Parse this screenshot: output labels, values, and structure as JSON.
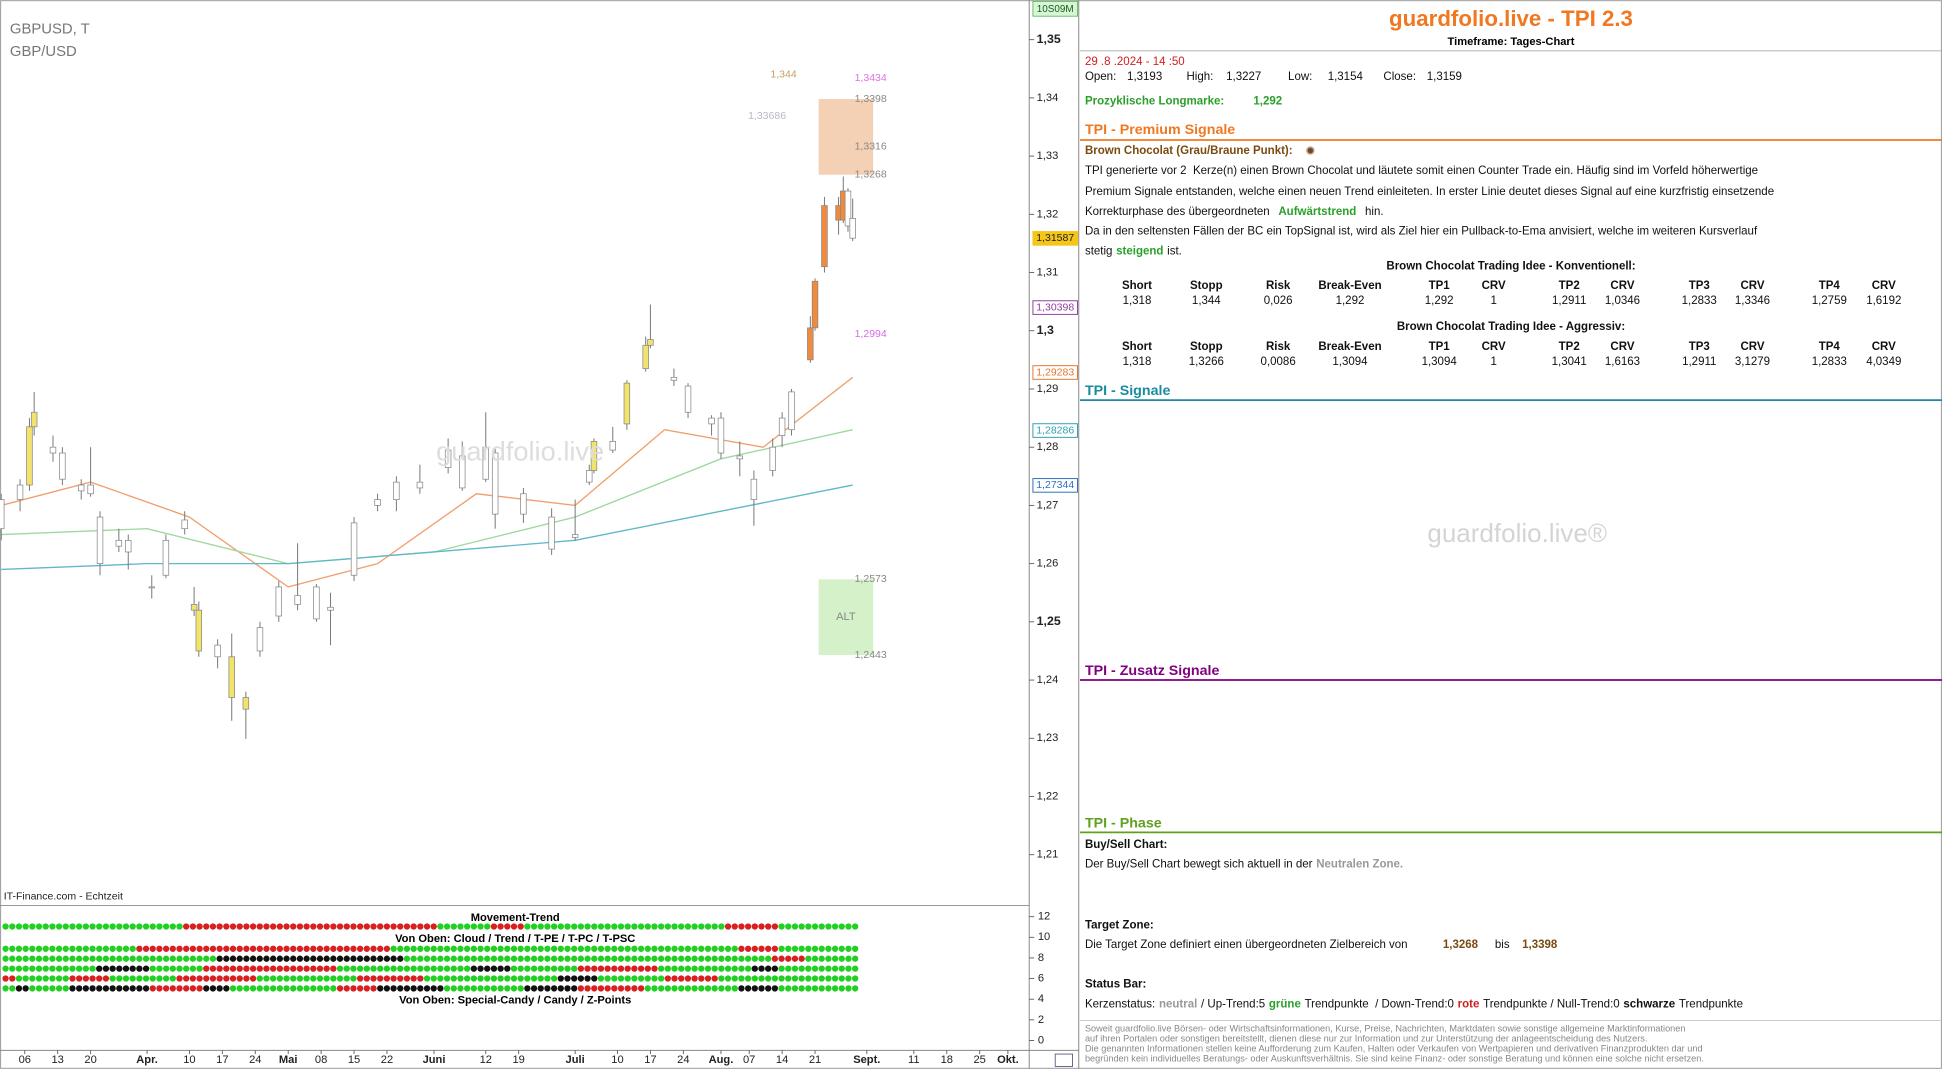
{
  "chart_data": {
    "type": "candlestick",
    "title": "GBPUSD, T",
    "subtitle": "GBP/USD",
    "source": "IT-Finance.com - Echtzeit",
    "timer": "10S09M",
    "watermark": "guardfolio.live",
    "x": [
      "2024-03-01",
      "2024-03-05",
      "2024-03-07",
      "2024-03-08",
      "2024-03-12",
      "2024-03-14",
      "2024-03-18",
      "2024-03-20",
      "2024-03-22",
      "2024-03-26",
      "2024-03-28",
      "2024-04-02",
      "2024-04-05",
      "2024-04-09",
      "2024-04-11",
      "2024-04-12",
      "2024-04-16",
      "2024-04-19",
      "2024-04-22",
      "2024-04-25",
      "2024-04-29",
      "2024-05-03",
      "2024-05-07",
      "2024-05-10",
      "2024-05-15",
      "2024-05-20",
      "2024-05-24",
      "2024-05-29",
      "2024-06-04",
      "2024-06-07",
      "2024-06-12",
      "2024-06-14",
      "2024-06-20",
      "2024-06-26",
      "2024-07-01",
      "2024-07-04",
      "2024-07-05",
      "2024-07-09",
      "2024-07-12",
      "2024-07-16",
      "2024-07-17",
      "2024-07-22",
      "2024-07-25",
      "2024-07-30",
      "2024-08-01",
      "2024-08-05",
      "2024-08-08",
      "2024-08-12",
      "2024-08-14",
      "2024-08-16",
      "2024-08-20",
      "2024-08-21",
      "2024-08-23",
      "2024-08-26",
      "2024-08-27",
      "2024-08-28",
      "2024-08-29"
    ],
    "open": [
      1.266,
      1.271,
      1.2735,
      1.2835,
      1.28,
      1.279,
      1.2735,
      1.272,
      1.268,
      1.264,
      1.264,
      1.256,
      1.258,
      1.266,
      1.253,
      1.252,
      1.246,
      1.244,
      1.237,
      1.245,
      1.251,
      1.253,
      1.256,
      1.252,
      1.258,
      1.27,
      1.271,
      1.274,
      1.2795,
      1.2785,
      1.2745,
      1.279,
      1.272,
      1.268,
      1.2645,
      1.274,
      1.276,
      1.281,
      1.284,
      1.2935,
      1.2975,
      1.2915,
      1.2905,
      1.285,
      1.285,
      1.2785,
      1.271,
      1.276,
      1.282,
      1.283,
      1.295,
      1.3005,
      1.311,
      1.3215,
      1.319,
      1.324,
      1.3193
    ],
    "high": [
      1.272,
      1.2745,
      1.285,
      1.2895,
      1.282,
      1.28,
      1.2745,
      1.28,
      1.269,
      1.266,
      1.265,
      1.258,
      1.265,
      1.269,
      1.256,
      1.2535,
      1.247,
      1.248,
      1.238,
      1.25,
      1.257,
      1.2635,
      1.2565,
      1.255,
      1.268,
      1.272,
      1.275,
      1.277,
      1.2815,
      1.281,
      1.286,
      1.28,
      1.273,
      1.2695,
      1.271,
      1.277,
      1.2815,
      1.2835,
      1.2915,
      1.299,
      1.3045,
      1.2935,
      1.291,
      1.2855,
      1.286,
      1.281,
      1.276,
      1.2815,
      1.286,
      1.29,
      1.3025,
      1.309,
      1.323,
      1.323,
      1.3265,
      1.3245,
      1.3227
    ],
    "low": [
      1.264,
      1.269,
      1.2725,
      1.282,
      1.2775,
      1.2735,
      1.271,
      1.2715,
      1.258,
      1.262,
      1.259,
      1.254,
      1.2575,
      1.265,
      1.251,
      1.244,
      1.242,
      1.233,
      1.2299,
      1.244,
      1.25,
      1.252,
      1.25,
      1.246,
      1.257,
      1.269,
      1.269,
      1.272,
      1.2755,
      1.2725,
      1.274,
      1.266,
      1.267,
      1.2615,
      1.264,
      1.2735,
      1.2755,
      1.279,
      1.283,
      1.293,
      1.297,
      1.2905,
      1.285,
      1.282,
      1.278,
      1.275,
      1.2665,
      1.275,
      1.28,
      1.282,
      1.2945,
      1.3,
      1.31,
      1.3165,
      1.3185,
      1.317,
      1.3154
    ],
    "close": [
      1.271,
      1.2735,
      1.2835,
      1.286,
      1.279,
      1.2745,
      1.2725,
      1.2735,
      1.26,
      1.263,
      1.262,
      1.256,
      1.264,
      1.2675,
      1.252,
      1.245,
      1.244,
      1.237,
      1.235,
      1.249,
      1.256,
      1.2545,
      1.2505,
      1.2525,
      1.267,
      1.271,
      1.274,
      1.273,
      1.2765,
      1.273,
      1.28,
      1.2685,
      1.2685,
      1.2625,
      1.265,
      1.276,
      1.281,
      1.2795,
      1.291,
      1.2975,
      1.2985,
      1.292,
      1.286,
      1.284,
      1.279,
      1.278,
      1.2745,
      1.28,
      1.285,
      1.2895,
      1.3005,
      1.3085,
      1.3215,
      1.319,
      1.324,
      1.318,
      1.3159
    ],
    "candle_colors": [
      "#ffffff",
      "#ffffff",
      "#f2e46b",
      "#f2e46b",
      "#ffffff",
      "#ffffff",
      "#ffffff",
      "#ffffff",
      "#ffffff",
      "#ffffff",
      "#ffffff",
      "#ffffff",
      "#ffffff",
      "#ffffff",
      "#f2e46b",
      "#f2e46b",
      "#ffffff",
      "#f2e46b",
      "#f2e46b",
      "#ffffff",
      "#ffffff",
      "#ffffff",
      "#ffffff",
      "#ffffff",
      "#ffffff",
      "#ffffff",
      "#ffffff",
      "#ffffff",
      "#ffffff",
      "#ffffff",
      "#ffffff",
      "#ffffff",
      "#ffffff",
      "#ffffff",
      "#ffffff",
      "#ffffff",
      "#f2e46b",
      "#ffffff",
      "#f2e46b",
      "#f2e46b",
      "#f2e46b",
      "#ffffff",
      "#ffffff",
      "#ffffff",
      "#ffffff",
      "#ffffff",
      "#ffffff",
      "#ffffff",
      "#ffffff",
      "#ffffff",
      "#f08a3c",
      "#f08a3c",
      "#f08a3c",
      "#f08a3c",
      "#f08a3c",
      "#ffffff",
      "#ffffff"
    ],
    "xlim": [
      "2024-03-01",
      "2024-10-05"
    ],
    "xticks": [
      {
        "value": "2024-03-06",
        "label": "06"
      },
      {
        "value": "2024-03-13",
        "label": "13"
      },
      {
        "value": "2024-03-20",
        "label": "20"
      },
      {
        "value": "2024-04-01",
        "label": "Apr."
      },
      {
        "value": "2024-04-10",
        "label": "10"
      },
      {
        "value": "2024-04-17",
        "label": "17"
      },
      {
        "value": "2024-04-24",
        "label": "24"
      },
      {
        "value": "2024-05-01",
        "label": "Mai"
      },
      {
        "value": "2024-05-08",
        "label": "08"
      },
      {
        "value": "2024-05-15",
        "label": "15"
      },
      {
        "value": "2024-05-22",
        "label": "22"
      },
      {
        "value": "2024-06-01",
        "label": "Juni"
      },
      {
        "value": "2024-06-12",
        "label": "12"
      },
      {
        "value": "2024-06-19",
        "label": "19"
      },
      {
        "value": "2024-07-01",
        "label": "Juli"
      },
      {
        "value": "2024-07-10",
        "label": "10"
      },
      {
        "value": "2024-07-17",
        "label": "17"
      },
      {
        "value": "2024-07-24",
        "label": "24"
      },
      {
        "value": "2024-08-01",
        "label": "Aug."
      },
      {
        "value": "2024-08-07",
        "label": "07"
      },
      {
        "value": "2024-08-14",
        "label": "14"
      },
      {
        "value": "2024-08-21",
        "label": "21"
      },
      {
        "value": "2024-09-01",
        "label": "Sept."
      },
      {
        "value": "2024-09-11",
        "label": "11"
      },
      {
        "value": "2024-09-18",
        "label": "18"
      },
      {
        "value": "2024-09-25",
        "label": "25"
      },
      {
        "value": "2024-10-01",
        "label": "Okt."
      }
    ],
    "ylim": [
      1.2015,
      1.3568
    ],
    "yticks": [
      {
        "value": 1.35,
        "label": "1,35",
        "bold": true
      },
      {
        "value": 1.34,
        "label": "1,34"
      },
      {
        "value": 1.33,
        "label": "1,33"
      },
      {
        "value": 1.32,
        "label": "1,32"
      },
      {
        "value": 1.31,
        "label": "1,31"
      },
      {
        "value": 1.3,
        "label": "1,3",
        "bold": true
      },
      {
        "value": 1.29,
        "label": "1,29"
      },
      {
        "value": 1.28,
        "label": "1,28"
      },
      {
        "value": 1.27,
        "label": "1,27"
      },
      {
        "value": 1.26,
        "label": "1,26"
      },
      {
        "value": 1.25,
        "label": "1,25",
        "bold": true
      },
      {
        "value": 1.24,
        "label": "1,24"
      },
      {
        "value": 1.23,
        "label": "1,23"
      },
      {
        "value": 1.22,
        "label": "1,22"
      },
      {
        "value": 1.21,
        "label": "1,21"
      }
    ],
    "grid": false,
    "lines": [
      {
        "color": "#f0a070",
        "x": [
          "2024-03-01",
          "2024-03-20",
          "2024-04-10",
          "2024-05-01",
          "2024-05-20",
          "2024-06-10",
          "2024-07-01",
          "2024-07-20",
          "2024-08-10",
          "2024-08-29"
        ],
        "values": [
          1.27,
          1.274,
          1.268,
          1.256,
          1.26,
          1.272,
          1.27,
          1.283,
          1.28,
          1.292
        ]
      },
      {
        "color": "#a0d8a0",
        "x": [
          "2024-03-01",
          "2024-04-01",
          "2024-05-01",
          "2024-06-01",
          "2024-07-01",
          "2024-08-01",
          "2024-08-29"
        ],
        "values": [
          1.265,
          1.266,
          1.26,
          1.262,
          1.268,
          1.278,
          1.283
        ]
      },
      {
        "color": "#60b8c8",
        "x": [
          "2024-03-01",
          "2024-04-01",
          "2024-05-01",
          "2024-06-01",
          "2024-07-01",
          "2024-08-01",
          "2024-08-29"
        ],
        "values": [
          1.259,
          1.26,
          1.26,
          1.262,
          1.264,
          1.269,
          1.2735
        ]
      }
    ],
    "price_labels": [
      {
        "value": 1.31587,
        "label": "1,31587",
        "color": "#f5c518",
        "filled": true
      },
      {
        "value": 1.30398,
        "label": "1,30398",
        "color": "#9040a0"
      },
      {
        "value": 1.29283,
        "label": "1,29283",
        "color": "#e07830"
      },
      {
        "value": 1.28286,
        "label": "1,28286",
        "color": "#30a0b0"
      },
      {
        "value": 1.27344,
        "label": "1,27344",
        "color": "#3070c0"
      }
    ],
    "zones": [
      {
        "top": 1.3398,
        "bottom": 1.3268,
        "color": "#f2c8a8"
      },
      {
        "top": 1.2573,
        "bottom": 1.2443,
        "color": "#cdeec0",
        "label": "ALT"
      }
    ],
    "annotations": [
      {
        "value": 1.344,
        "label": "1,344",
        "color": "#c8a060"
      },
      {
        "value": 1.3434,
        "label": "1,3434",
        "color": "#e070e0"
      },
      {
        "value": 1.3398,
        "label": "1,3398",
        "color": "#888888"
      },
      {
        "value": 1.33686,
        "label": "1,33686",
        "color": "#b8b8c8"
      },
      {
        "value": 1.3316,
        "label": "1,3316",
        "color": "#888888"
      },
      {
        "value": 1.3268,
        "label": "1,3268",
        "color": "#888888"
      },
      {
        "value": 1.2994,
        "label": "1,2994",
        "color": "#d070e0"
      },
      {
        "value": 1.2573,
        "label": "1,2573",
        "color": "#888888"
      },
      {
        "value": 1.2443,
        "label": "1,2443",
        "color": "#888888"
      }
    ]
  },
  "indicator": {
    "title": "Movement-Trend",
    "subtitle1": "Von Oben: Cloud / Trend / T-PE / T-PC / T-PSC",
    "subtitle2": "Von Oben: Special-Candy / Candy / Z-Points",
    "ylim": [
      -0.96,
      12.85
    ],
    "yticks": [
      12,
      10,
      8,
      6,
      4,
      2,
      0
    ],
    "state_colors": {
      "1": "#22d022",
      "-1": "#d82020",
      "0": "#111111"
    },
    "rows": [
      [
        [
          1,
          27
        ],
        [
          -1,
          38
        ],
        [
          1,
          8
        ],
        [
          -1,
          5
        ],
        [
          1,
          30
        ],
        [
          -1,
          8
        ],
        [
          1,
          12
        ]
      ],
      [
        [
          1,
          20
        ],
        [
          -1,
          38
        ],
        [
          1,
          52
        ],
        [
          -1,
          6
        ],
        [
          1,
          12
        ]
      ],
      [
        [
          1,
          32
        ],
        [
          0,
          28
        ],
        [
          1,
          55
        ],
        [
          -1,
          5
        ],
        [
          1,
          8
        ]
      ],
      [
        [
          1,
          14
        ],
        [
          0,
          8
        ],
        [
          1,
          8
        ],
        [
          -1,
          20
        ],
        [
          1,
          20
        ],
        [
          0,
          6
        ],
        [
          1,
          10
        ],
        [
          -1,
          12
        ],
        [
          1,
          14
        ],
        [
          0,
          4
        ],
        [
          1,
          12
        ]
      ],
      [
        [
          -1,
          2
        ],
        [
          1,
          8
        ],
        [
          -1,
          6
        ],
        [
          1,
          10
        ],
        [
          -1,
          12
        ],
        [
          1,
          15
        ],
        [
          -1,
          10
        ],
        [
          1,
          20
        ],
        [
          0,
          6
        ],
        [
          1,
          10
        ],
        [
          -1,
          8
        ],
        [
          1,
          21
        ]
      ],
      [
        [
          1,
          2
        ],
        [
          0,
          2
        ],
        [
          1,
          6
        ],
        [
          0,
          12
        ],
        [
          -1,
          8
        ],
        [
          0,
          4
        ],
        [
          1,
          16
        ],
        [
          -1,
          6
        ],
        [
          0,
          10
        ],
        [
          1,
          12
        ],
        [
          0,
          8
        ],
        [
          -1,
          10
        ],
        [
          1,
          14
        ],
        [
          0,
          6
        ],
        [
          1,
          12
        ]
      ]
    ]
  },
  "panel": {
    "title": "guardfolio.live - TPI 2.3",
    "timeframe": "Timeframe: Tages-Chart",
    "datetime": "29 .8 .2024 - 14 :50",
    "ohlc": [
      [
        "Open:",
        "1,3193"
      ],
      [
        "High:",
        "1,3227"
      ],
      [
        "Low:",
        "1,3154"
      ],
      [
        "Close:",
        "1,3159"
      ]
    ],
    "longmark": {
      "label": "Prozyklische Longmarke:",
      "value": "1,292"
    },
    "premium": {
      "heading": "TPI - Premium Signale",
      "signal": "Brown Chocolat (Grau/Braune Punkt):",
      "text": [
        [
          "TPI generierte vor 2  Kerze(n) einen Brown Chocolat und läutete somit einen Counter Trade ein. Häufig sind im Vorfeld höherwertige"
        ],
        [
          "Premium Signale entstanden, welche einen neuen Trend einleiteten. In erster Linie deutet dieses Signal auf eine kurzfristig einsetzende"
        ],
        [
          "Korrekturphase des übergeordneten",
          "Aufwärtstrend",
          "hin."
        ],
        [
          "Da in den seltensten Fällen der BC ein TopSignal ist, wird als Ziel hier ein Pullback-to-Ema anvisiert, welche im weiteren Kursverlauf"
        ],
        [
          "stetig",
          "steigend",
          "ist."
        ]
      ],
      "tables": [
        {
          "title": "Brown Chocolat Trading Idee - Konventionell:",
          "headers": [
            "Short",
            "Stopp",
            "Risk",
            "Break-Even",
            "TP1",
            "CRV",
            "TP2",
            "CRV",
            "TP3",
            "CRV",
            "TP4",
            "CRV"
          ],
          "rows": [
            [
              "1,318",
              "1,344",
              "0,026",
              "1,292",
              "1,292",
              "1",
              "1,2911",
              "1,0346",
              "1,2833",
              "1,3346",
              "1,2759",
              "1,6192"
            ]
          ]
        },
        {
          "title": "Brown Chocolat Trading Idee - Aggressiv:",
          "headers": [
            "Short",
            "Stopp",
            "Risk",
            "Break-Even",
            "TP1",
            "CRV",
            "TP2",
            "CRV",
            "TP3",
            "CRV",
            "TP4",
            "CRV"
          ],
          "rows": [
            [
              "1,318",
              "1,3266",
              "0,0086",
              "1,3094",
              "1,3094",
              "1",
              "1,3041",
              "1,6163",
              "1,2911",
              "3,1279",
              "1,2833",
              "4,0349"
            ]
          ]
        }
      ]
    },
    "signals": {
      "heading": "TPI - Signale",
      "watermark": "guardfolio.live®"
    },
    "extra": {
      "heading": "TPI - Zusatz Signale"
    },
    "phase": {
      "heading": "TPI - Phase",
      "buysell_title": "Buy/Sell Chart:",
      "buysell_text": [
        "Der Buy/Sell Chart bewegt sich aktuell in der",
        "Neutralen Zone."
      ],
      "target_title": "Target Zone:",
      "target_text": [
        "Die Target Zone definiert einen übergeordneten Zielbereich von",
        "1,3268",
        "bis",
        "1,3398"
      ],
      "status_title": "Status Bar:",
      "status_text": [
        "Kerzenstatus:",
        "neutral",
        "/ Up-Trend:5",
        "grüne",
        "Trendpunkte  / Down-Trend:0",
        "rote",
        "Trendpunkte / Null-Trend:0",
        "schwarze",
        "Trendpunkte"
      ]
    },
    "disclaimer": [
      "Soweit guardfolio.live Börsen- oder Wirtschaftsinformationen, Kurse, Preise, Nachrichten, Marktdaten sowie sonstige allgemeine Marktinformationen",
      "auf ihren Portalen oder sonstigen bereitstellt, dienen diese nur zur Information und zur Unterstützung der anlageentscheidung des Nutzers.",
      "Die genannten Informationen stellen keine Aufforderung zum Kaufen, Halten oder Verkaufen von Wertpapieren und derivativen Finanzprodukten dar und",
      "begründen kein individuelles Beratungs- oder Auskunftsverhältnis. Sie sind keine Finanz- oder sonstige Beratung und können eine solche nicht ersetzen."
    ]
  }
}
